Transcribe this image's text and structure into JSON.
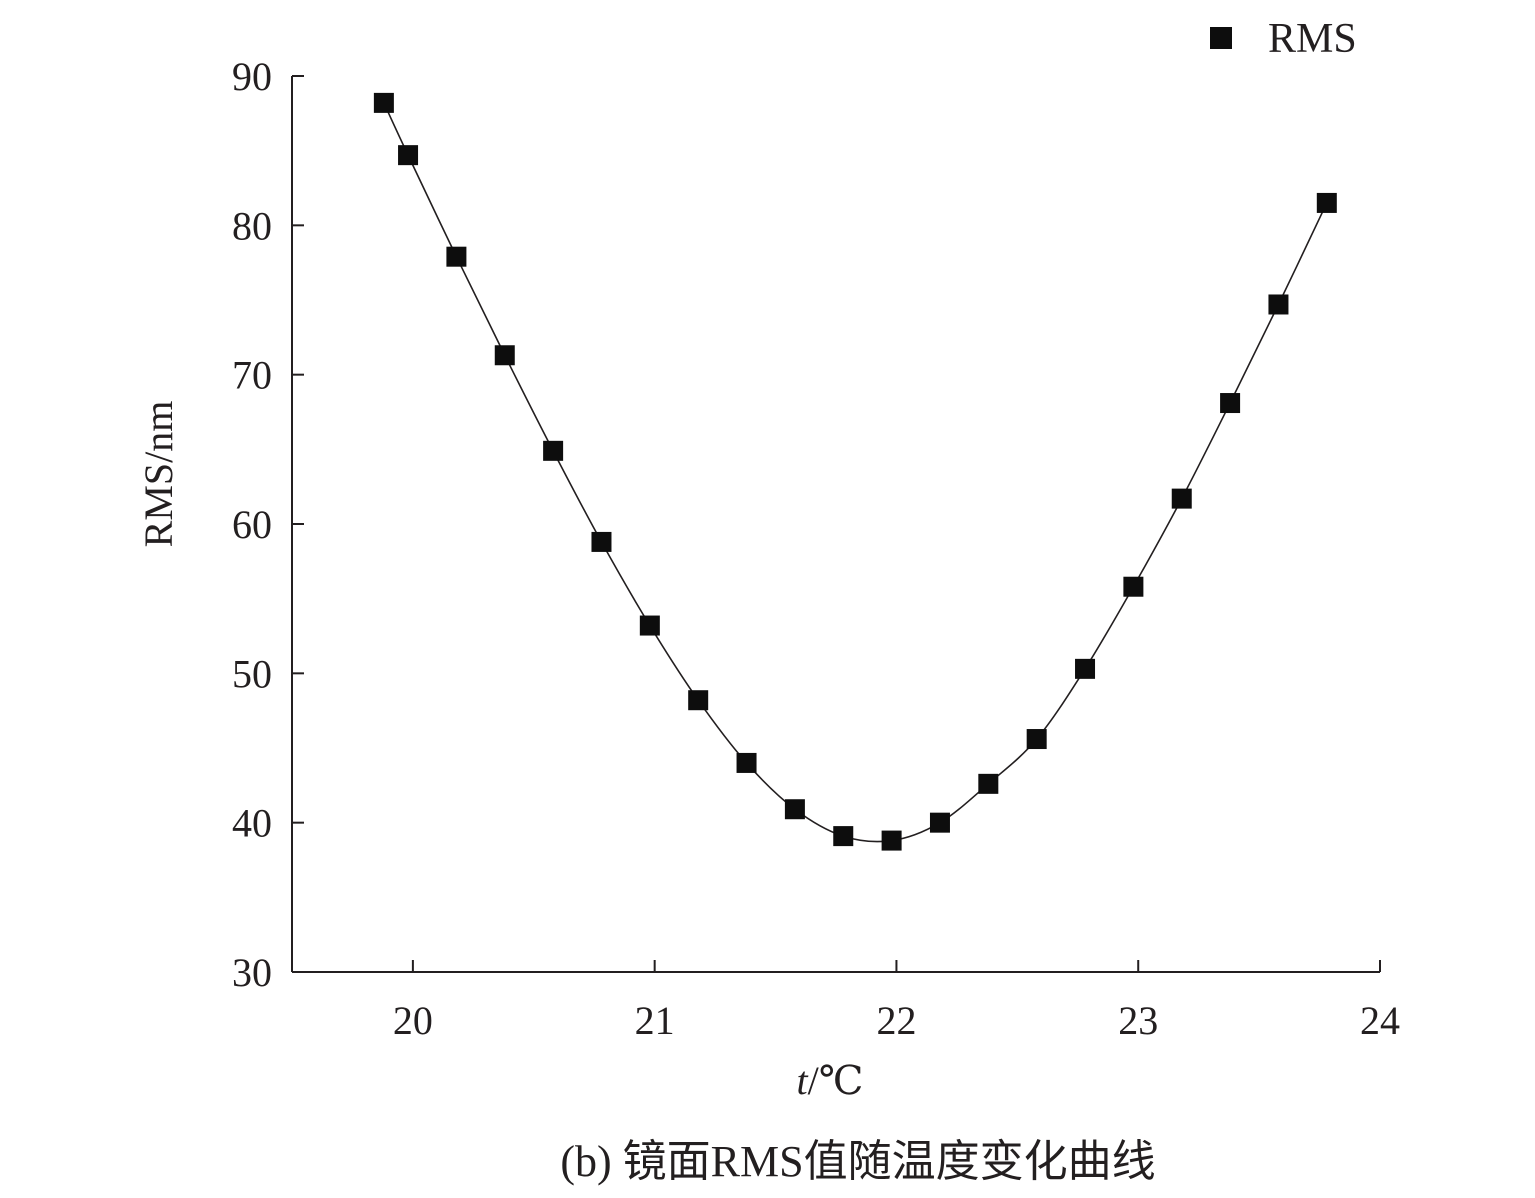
{
  "chart_data": {
    "type": "line",
    "title": "",
    "caption": "(b) 镜面RMS值随温度变化曲线",
    "xlabel_italic": "t",
    "xlabel_rest": "/℃",
    "ylabel": "RMS/nm",
    "xlim": [
      19.5,
      24
    ],
    "ylim": [
      30,
      90
    ],
    "xticks": [
      20,
      21,
      22,
      23,
      24
    ],
    "yticks": [
      30,
      40,
      50,
      60,
      70,
      80,
      90
    ],
    "legend": "top-right",
    "grid": false,
    "series": [
      {
        "name": "RMS",
        "marker": "square",
        "color": "#0d0d0d",
        "x": [
          19.88,
          19.98,
          20.18,
          20.38,
          20.58,
          20.78,
          20.98,
          21.18,
          21.38,
          21.58,
          21.78,
          21.98,
          22.18,
          22.38,
          22.58,
          22.78,
          22.98,
          23.18,
          23.38,
          23.58,
          23.78
        ],
        "y": [
          88.2,
          84.7,
          77.9,
          71.3,
          64.9,
          58.8,
          53.2,
          48.2,
          44.0,
          40.9,
          39.1,
          38.8,
          40.0,
          42.6,
          45.6,
          50.3,
          55.8,
          61.7,
          68.1,
          74.7,
          81.5
        ]
      }
    ]
  }
}
